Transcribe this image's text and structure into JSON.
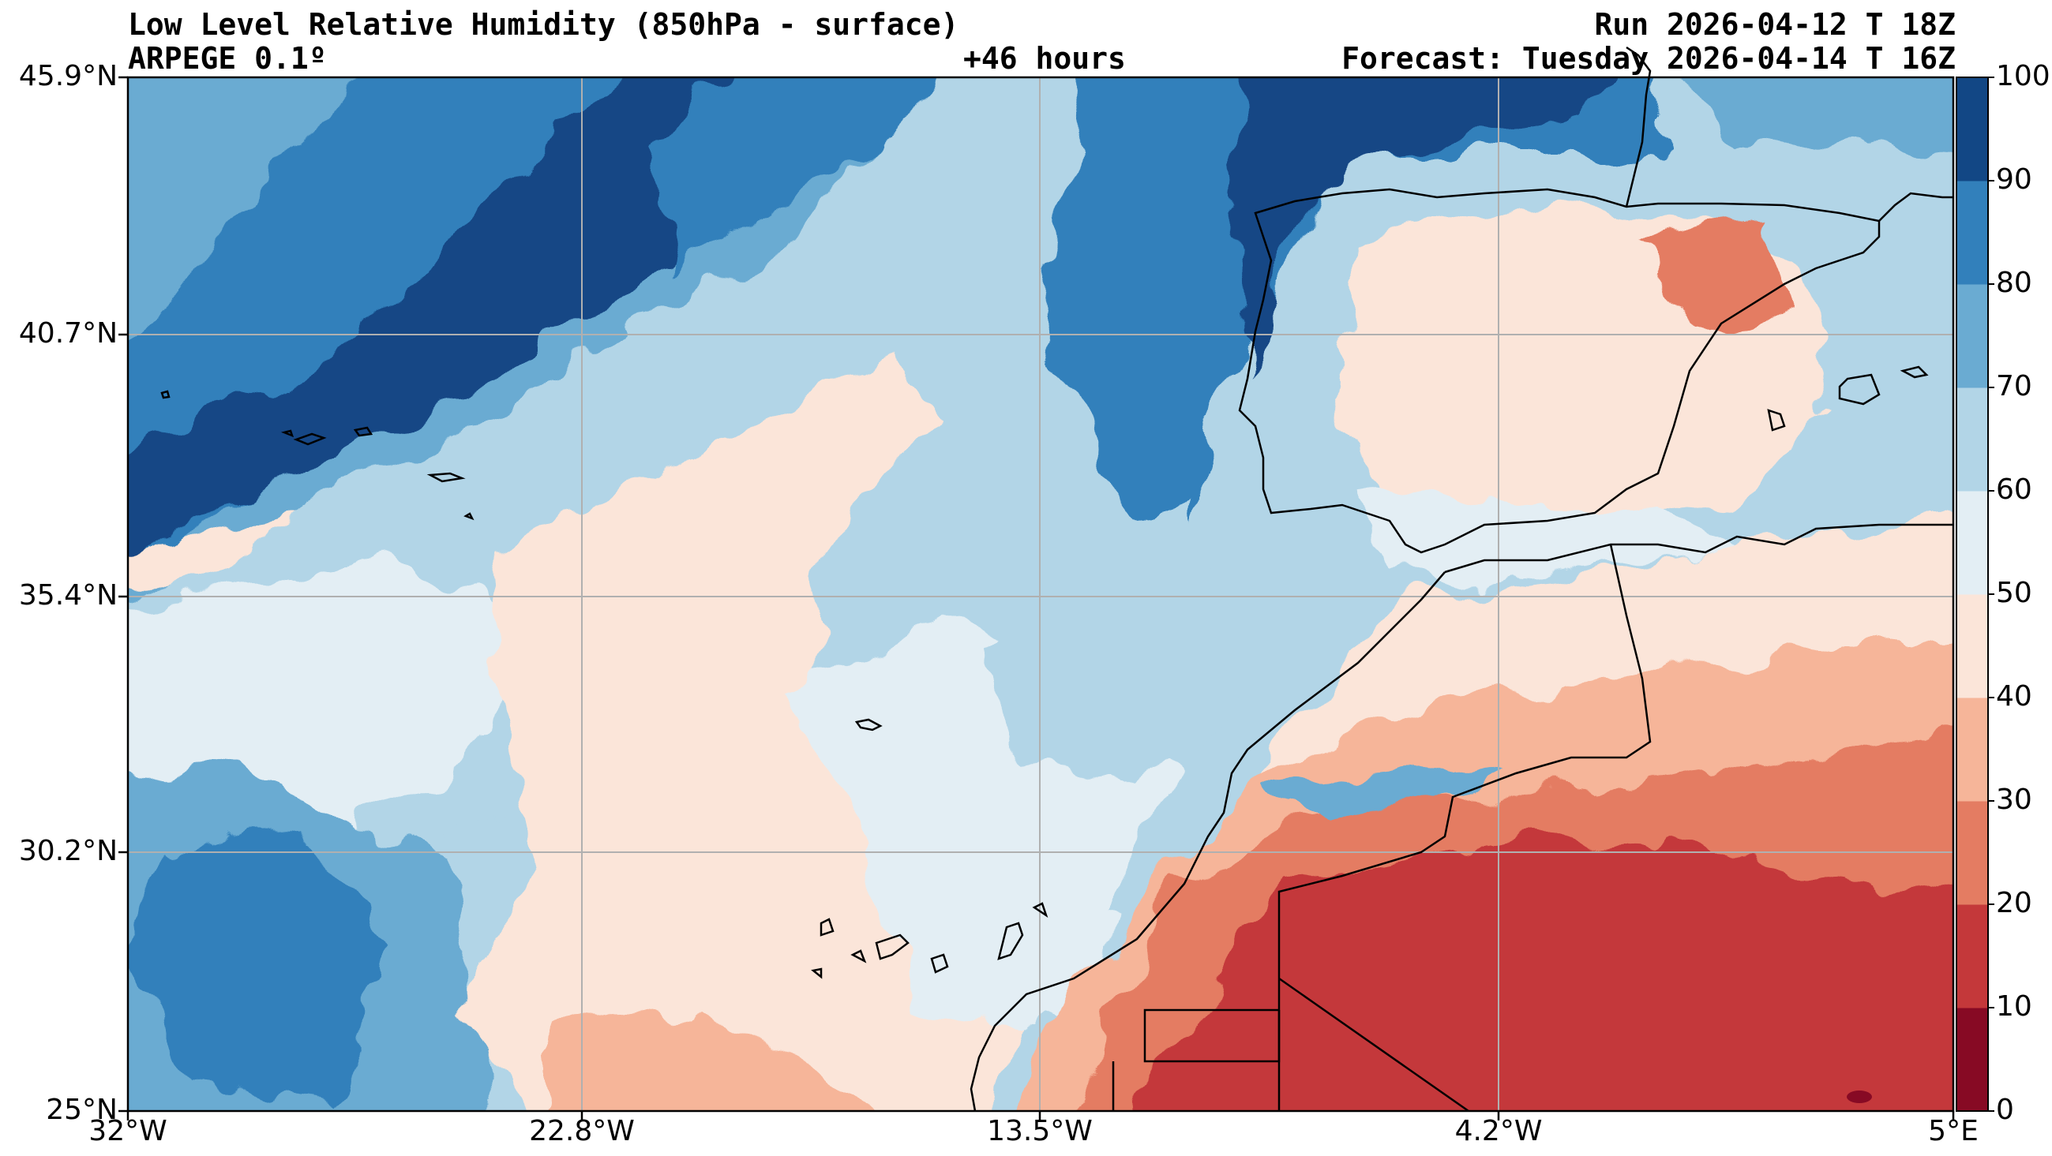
{
  "header": {
    "title": "Low Level Relative Humidity (850hPa - surface)",
    "model": "ARPEGE 0.1º",
    "lead": "+46 hours",
    "run": "Run 2026-04-12 T 18Z",
    "forecast": "Forecast: Tuesday 2026-04-14 T 16Z"
  },
  "map": {
    "lat_range": [
      25,
      45.9
    ],
    "lon_range": [
      -32,
      5
    ],
    "lat_labels": [
      "45.9°N",
      "40.7°N",
      "35.4°N",
      "30.2°N",
      "25°N"
    ],
    "lon_labels": [
      "32°W",
      "22.8°W",
      "13.5°W",
      "4.2°W",
      "5°E"
    ],
    "grid": true
  },
  "colorbar": {
    "levels": [
      0,
      10,
      20,
      30,
      40,
      50,
      60,
      70,
      80,
      90,
      100
    ],
    "labels": [
      "100",
      "90",
      "80",
      "70",
      "60",
      "50",
      "40",
      "30",
      "20",
      "10",
      "0"
    ],
    "colors": [
      "#870a24",
      "#c4383a",
      "#e47c62",
      "#f6b599",
      "#fbe5d9",
      "#e3eef4",
      "#b2d5e7",
      "#6aabd2",
      "#3280bb",
      "#124785"
    ]
  }
}
